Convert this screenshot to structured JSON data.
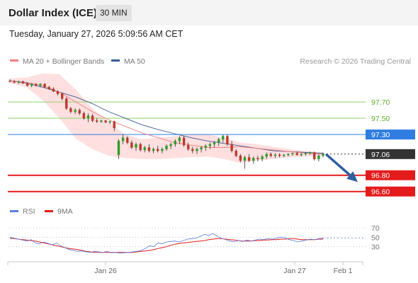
{
  "header": {
    "title": "Dollar Index (ICE)",
    "timeframe": "30 MIN",
    "timestamp": "Tuesday, January 27, 2026 5:09:56 AM CET"
  },
  "colors": {
    "ma20": "#f08080",
    "ma50": "#3a5a98",
    "bollinger": "#ffd9d9",
    "resistance": "#8fd46a",
    "pivot": "#2f7de1",
    "support": "#e31b1b",
    "last": "#333333",
    "rsi": "#5b7ee0",
    "rsi_ma": "#e31b1b",
    "arrow": "#2f5fa0"
  },
  "chart_data": [
    {
      "type": "candlestick",
      "legend": {
        "items": [
          "MA 20 + Bollinger Bands",
          "MA 50"
        ],
        "placement": "top-left"
      },
      "credit": "Research © 2026 Trading Central",
      "ylim": [
        96.45,
        98.1
      ],
      "x_ticks": [
        "Jan 26",
        "Jan 27",
        "Feb 1"
      ],
      "levels": [
        {
          "label": "97.70",
          "value": 97.7,
          "kind": "resistance"
        },
        {
          "label": "97.50",
          "value": 97.5,
          "kind": "resistance"
        },
        {
          "label": "97.30",
          "value": 97.3,
          "kind": "pivot"
        },
        {
          "label": "97.06",
          "value": 97.06,
          "kind": "last"
        },
        {
          "label": "96.80",
          "value": 96.8,
          "kind": "support"
        },
        {
          "label": "96.60",
          "value": 96.6,
          "kind": "support"
        }
      ],
      "candles": [
        [
          97.96,
          97.98,
          97.94,
          97.95
        ],
        [
          97.95,
          97.97,
          97.93,
          97.94
        ],
        [
          97.94,
          97.96,
          97.92,
          97.95
        ],
        [
          97.95,
          97.96,
          97.92,
          97.93
        ],
        [
          97.93,
          97.94,
          97.89,
          97.9
        ],
        [
          97.9,
          97.93,
          97.88,
          97.92
        ],
        [
          97.92,
          97.93,
          97.89,
          97.9
        ],
        [
          97.9,
          97.93,
          97.88,
          97.92
        ],
        [
          97.92,
          97.93,
          97.87,
          97.88
        ],
        [
          97.88,
          97.9,
          97.85,
          97.86
        ],
        [
          97.86,
          97.88,
          97.82,
          97.83
        ],
        [
          97.83,
          97.84,
          97.78,
          97.8
        ],
        [
          97.8,
          97.81,
          97.72,
          97.74
        ],
        [
          97.74,
          97.76,
          97.6,
          97.62
        ],
        [
          97.62,
          97.64,
          97.56,
          97.58
        ],
        [
          97.58,
          97.62,
          97.55,
          97.6
        ],
        [
          97.6,
          97.62,
          97.54,
          97.56
        ],
        [
          97.56,
          97.58,
          97.48,
          97.5
        ],
        [
          97.5,
          97.56,
          97.45,
          97.53
        ],
        [
          97.53,
          97.55,
          97.45,
          97.47
        ],
        [
          97.47,
          97.5,
          97.44,
          97.46
        ],
        [
          97.46,
          97.48,
          97.44,
          97.47
        ],
        [
          97.47,
          97.48,
          97.44,
          97.45
        ],
        [
          97.45,
          97.47,
          97.43,
          97.46
        ],
        [
          97.46,
          97.47,
          97.34,
          97.38
        ],
        [
          97.05,
          97.24,
          97.0,
          97.22
        ],
        [
          97.22,
          97.3,
          97.18,
          97.26
        ],
        [
          97.26,
          97.28,
          97.18,
          97.2
        ],
        [
          97.2,
          97.23,
          97.12,
          97.14
        ],
        [
          97.14,
          97.2,
          97.1,
          97.18
        ],
        [
          97.18,
          97.2,
          97.09,
          97.11
        ],
        [
          97.11,
          97.16,
          97.08,
          97.14
        ],
        [
          97.14,
          97.18,
          97.08,
          97.1
        ],
        [
          97.1,
          97.14,
          97.07,
          97.12
        ],
        [
          97.12,
          97.16,
          97.08,
          97.1
        ],
        [
          97.1,
          97.14,
          97.07,
          97.12
        ],
        [
          97.12,
          97.18,
          97.1,
          97.16
        ],
        [
          97.16,
          97.2,
          97.12,
          97.18
        ],
        [
          97.18,
          97.24,
          97.15,
          97.22
        ],
        [
          97.22,
          97.28,
          97.18,
          97.26
        ],
        [
          97.26,
          97.28,
          97.15,
          97.17
        ],
        [
          97.17,
          97.2,
          97.1,
          97.12
        ],
        [
          97.12,
          97.15,
          97.07,
          97.1
        ],
        [
          97.1,
          97.14,
          97.06,
          97.12
        ],
        [
          97.12,
          97.16,
          97.08,
          97.14
        ],
        [
          97.14,
          97.18,
          97.1,
          97.16
        ],
        [
          97.16,
          97.2,
          97.12,
          97.18
        ],
        [
          97.18,
          97.22,
          97.14,
          97.2
        ],
        [
          97.2,
          97.26,
          97.16,
          97.24
        ],
        [
          97.24,
          97.3,
          97.2,
          97.28
        ],
        [
          97.28,
          97.3,
          97.16,
          97.18
        ],
        [
          97.18,
          97.22,
          97.08,
          97.1
        ],
        [
          97.1,
          97.12,
          97.02,
          97.04
        ],
        [
          97.04,
          97.06,
          96.96,
          96.98
        ],
        [
          96.98,
          97.04,
          96.88,
          97.02
        ],
        [
          97.02,
          97.06,
          96.96,
          96.98
        ],
        [
          96.98,
          97.03,
          96.94,
          97.01
        ],
        [
          97.01,
          97.04,
          96.97,
          97.0
        ],
        [
          97.0,
          97.05,
          96.97,
          97.03
        ],
        [
          97.03,
          97.08,
          97.0,
          97.06
        ],
        [
          97.06,
          97.08,
          97.02,
          97.04
        ],
        [
          97.04,
          97.07,
          97.01,
          97.05
        ],
        [
          97.05,
          97.07,
          97.02,
          97.04
        ],
        [
          97.04,
          97.06,
          97.02,
          97.05
        ],
        [
          97.05,
          97.07,
          97.03,
          97.06
        ],
        [
          97.06,
          97.08,
          97.04,
          97.07
        ],
        [
          97.07,
          97.09,
          97.04,
          97.05
        ],
        [
          97.05,
          97.07,
          97.03,
          97.06
        ],
        [
          97.06,
          97.08,
          97.04,
          97.07
        ],
        [
          97.07,
          97.09,
          97.05,
          97.08
        ],
        [
          97.08,
          97.09,
          96.98,
          97.0
        ],
        [
          97.0,
          97.06,
          96.97,
          97.04
        ],
        [
          97.04,
          97.08,
          97.02,
          97.06
        ]
      ],
      "ma20": [
        97.96,
        97.94,
        97.9,
        97.82,
        97.7,
        97.58,
        97.48,
        97.4,
        97.32,
        97.26,
        97.2,
        97.17,
        97.14,
        97.14,
        97.15,
        97.13,
        97.11,
        97.09,
        97.07,
        97.06
      ],
      "ma50": [
        97.96,
        97.93,
        97.88,
        97.82,
        97.76,
        97.68,
        97.58,
        97.5,
        97.42,
        97.36,
        97.31,
        97.26,
        97.22,
        97.19,
        97.16,
        97.13,
        97.1,
        97.09,
        97.08,
        97.07
      ],
      "bollinger_upper": [
        97.99,
        98.0,
        98.05,
        98.04,
        97.85,
        97.62,
        97.45,
        97.3,
        97.24,
        97.26,
        97.28,
        97.3,
        97.3,
        97.26,
        97.2,
        97.18,
        97.15,
        97.12,
        97.1,
        97.08
      ],
      "bollinger_lower": [
        97.93,
        97.88,
        97.72,
        97.5,
        97.25,
        97.12,
        97.04,
        97.01,
        97.0,
        97.0,
        97.01,
        97.02,
        97.03,
        97.0,
        96.95,
        96.98,
        97.0,
        97.02,
        97.03,
        97.04
      ],
      "projection": {
        "from": 97.06,
        "to": 96.74
      }
    },
    {
      "type": "line",
      "legend": {
        "items": [
          "RSI",
          "9MA"
        ],
        "placement": "top-left"
      },
      "y_ticks": [
        "70",
        "50",
        "30"
      ],
      "ylim": [
        10,
        85
      ],
      "rsi": [
        50,
        48,
        46,
        44,
        42,
        45,
        38,
        36,
        40,
        37,
        34,
        38,
        32,
        28,
        24,
        22,
        20,
        21,
        19,
        18,
        20,
        19,
        18,
        20,
        17,
        18,
        16,
        17,
        18,
        19,
        20,
        22,
        26,
        32,
        30,
        38,
        36,
        40,
        41,
        42,
        40,
        43,
        46,
        47,
        48,
        52,
        56,
        54,
        58,
        52,
        48,
        45,
        42,
        40,
        43,
        41,
        44,
        42,
        44,
        46,
        45,
        47,
        46,
        48,
        50,
        49,
        45,
        43,
        40,
        42,
        44,
        46,
        45,
        47,
        48
      ],
      "ma9": [
        48,
        47,
        46,
        45,
        44,
        43,
        42,
        40,
        38,
        36,
        34,
        32,
        30,
        28,
        26,
        25,
        24,
        22,
        20,
        19,
        18,
        18,
        18,
        18,
        18,
        18,
        18,
        18,
        18,
        18,
        19,
        20,
        21,
        22,
        24,
        26,
        28,
        30,
        33,
        35,
        37,
        38,
        39,
        40,
        41,
        42,
        43,
        45,
        46,
        47,
        47,
        46,
        45,
        44,
        43,
        42,
        42,
        42,
        43,
        43,
        44,
        44,
        45,
        45,
        46,
        46,
        47,
        47,
        46,
        45,
        45,
        45,
        45,
        46,
        46
      ]
    }
  ]
}
